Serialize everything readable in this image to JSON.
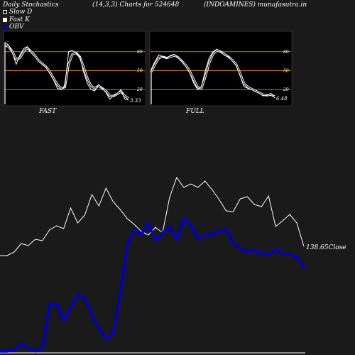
{
  "header": {
    "left": "Daily Stochastics",
    "center": "(14,3,3) Charts for 524648",
    "right": "(INDOAMINES) munafasutra.in"
  },
  "legend": {
    "slow_d": "Slow  D",
    "fast_k": "Fast K",
    "obv": "OBV"
  },
  "panels": {
    "fast_label": "FAST",
    "full_label": "FULL",
    "ticks": [
      "80",
      "50",
      "20"
    ]
  },
  "colors": {
    "background": "#1a1a1a",
    "panel_bg": "#000000",
    "level_line": "#cc7a00",
    "stoch_line": "#ffffff",
    "close_line": "#ffffff",
    "obv_line": "#0000cc"
  },
  "chart_data": [
    {
      "type": "line",
      "panel": "FAST",
      "ylim": [
        0,
        100
      ],
      "levels": [
        80,
        50,
        20
      ],
      "end_label": "3.33",
      "series": [
        {
          "name": "Fast K",
          "values": [
            95,
            90,
            78,
            60,
            75,
            85,
            88,
            78,
            72,
            64,
            60,
            55,
            45,
            35,
            22,
            20,
            25,
            80,
            82,
            78,
            72,
            48,
            30,
            20,
            18,
            28,
            22,
            15,
            5,
            10,
            14,
            20,
            5,
            3.33
          ]
        },
        {
          "name": "Slow  D",
          "values": [
            90,
            88,
            80,
            68,
            70,
            80,
            86,
            80,
            74,
            66,
            61,
            56,
            48,
            38,
            28,
            22,
            24,
            60,
            76,
            78,
            72,
            56,
            38,
            26,
            22,
            26,
            22,
            18,
            10,
            10,
            13,
            17,
            10,
            6
          ]
        }
      ]
    },
    {
      "type": "line",
      "panel": "FULL",
      "ylim": [
        0,
        100
      ],
      "levels": [
        80,
        50,
        20
      ],
      "end_label": "6.48",
      "series": [
        {
          "name": "Fast K",
          "values": [
            52,
            65,
            75,
            72,
            70,
            74,
            76,
            70,
            64,
            56,
            46,
            30,
            20,
            25,
            50,
            70,
            80,
            84,
            80,
            74,
            72,
            65,
            58,
            42,
            25,
            22,
            20,
            17,
            14,
            10,
            11,
            14,
            6.48
          ]
        },
        {
          "name": "Slow  D",
          "values": [
            48,
            60,
            70,
            72,
            70,
            72,
            74,
            71,
            65,
            58,
            49,
            36,
            24,
            22,
            40,
            62,
            76,
            82,
            80,
            76,
            72,
            67,
            60,
            46,
            30,
            24,
            21,
            18,
            15,
            12,
            11,
            12,
            9
          ]
        }
      ]
    },
    {
      "type": "line",
      "panel": "price",
      "end_label": "138.65",
      "end_suffix": "Close",
      "series": [
        {
          "name": "Close",
          "values": [
            360,
            360,
            355,
            343,
            346,
            337,
            339,
            324,
            318,
            322,
            293,
            314,
            303,
            274,
            290,
            265,
            284,
            295,
            308,
            316,
            326,
            331,
            320,
            328,
            278,
            250,
            264,
            259,
            264,
            255,
            267,
            281,
            297,
            298,
            280,
            277,
            288,
            291,
            276,
            319,
            311,
            302,
            314,
            347
          ]
        },
        {
          "name": "OBV",
          "values": [
            495,
            495,
            493,
            484,
            491,
            495,
            489,
            428,
            429,
            452,
            432,
            415,
            420,
            445,
            463,
            478,
            469,
            413,
            344,
            323,
            330,
            315,
            339,
            328,
            320,
            338,
            308,
            319,
            337,
            330,
            331,
            326,
            323,
            343,
            350,
            355,
            353,
            357,
            359,
            351,
            358,
            358,
            363,
            378
          ]
        }
      ]
    }
  ]
}
